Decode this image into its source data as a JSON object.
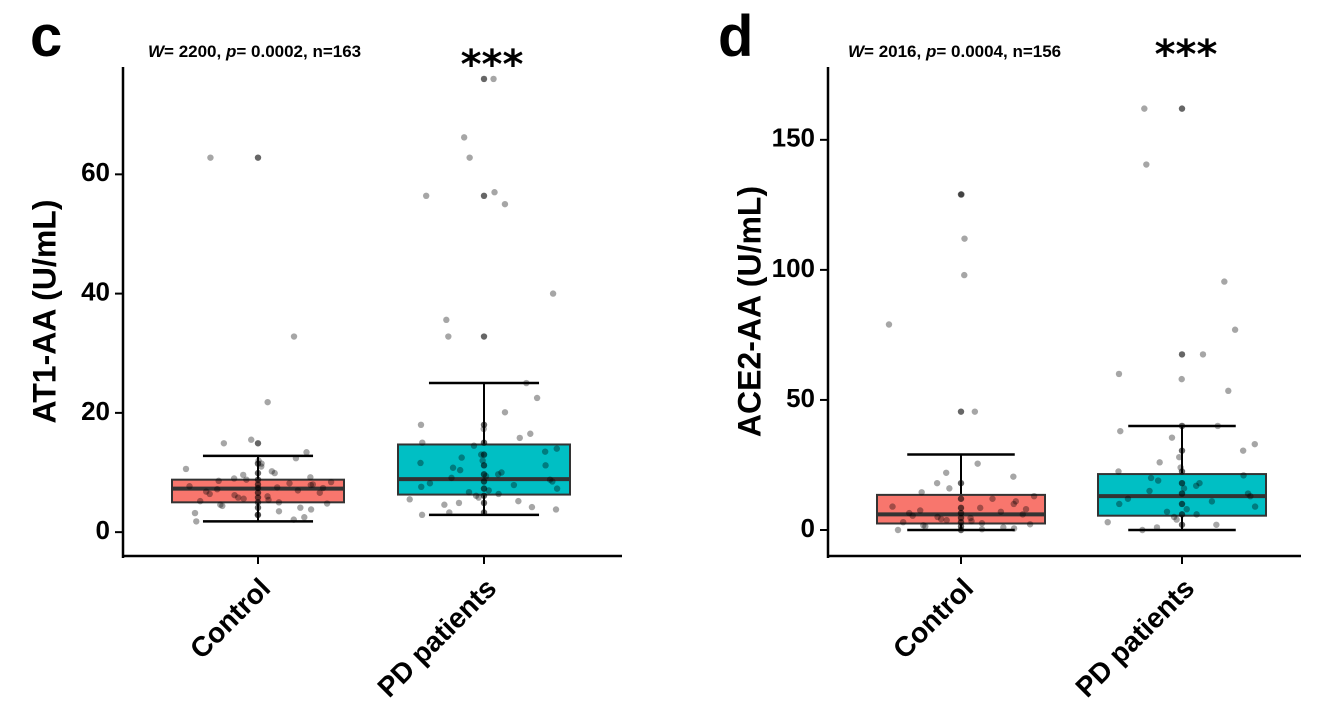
{
  "chart_data": [
    {
      "type": "box",
      "panel_label": "c",
      "stat_text": {
        "W_symbol": "W",
        "W_value": "= 2200, ",
        "p_symbol": "p",
        "p_value": "= 0.0002, n=163"
      },
      "significance": "***",
      "ylabel": "AT1-AA (U/mL)",
      "ylim": [
        -4,
        78
      ],
      "yticks": [
        0,
        20,
        40,
        60
      ],
      "categories": [
        "Control",
        "PD patients"
      ],
      "colors": {
        "Control": "#F8766D",
        "PD patients": "#00BFC4"
      },
      "boxes": [
        {
          "category": "Control",
          "whisker_low": 1.8,
          "q1": 5.0,
          "median": 7.3,
          "q3": 8.8,
          "whisker_high": 12.8
        },
        {
          "category": "PD patients",
          "whisker_low": 2.9,
          "q1": 6.3,
          "median": 8.9,
          "q3": 14.7,
          "whisker_high": 25.0
        }
      ],
      "points": [
        {
          "category": "Control",
          "values": [
            62.8,
            32.8,
            21.8,
            15.5,
            14.9,
            13.4,
            12.4,
            12.0,
            11.5,
            11.0,
            10.6,
            10.2,
            9.9,
            9.6,
            9.2,
            9.0,
            8.8,
            8.6,
            8.4,
            8.2,
            8.0,
            7.9,
            7.7,
            7.5,
            7.4,
            7.2,
            7.0,
            6.8,
            6.6,
            6.4,
            6.2,
            6.0,
            5.8,
            5.6,
            5.4,
            5.2,
            5.0,
            4.8,
            4.6,
            4.4,
            4.1,
            3.8,
            3.5,
            3.2,
            2.9,
            2.5,
            2.1,
            1.8
          ]
        },
        {
          "category": "PD patients",
          "values": [
            76.0,
            66.2,
            62.8,
            57.0,
            56.4,
            55.0,
            40.0,
            35.6,
            32.8,
            25.0,
            22.5,
            20.1,
            18.0,
            17.3,
            16.5,
            15.8,
            15.0,
            14.5,
            14.0,
            13.5,
            13.0,
            12.5,
            12.0,
            11.6,
            11.2,
            10.8,
            10.4,
            10.0,
            9.7,
            9.4,
            9.1,
            8.8,
            8.5,
            8.2,
            7.9,
            7.6,
            7.3,
            7.0,
            6.7,
            6.4,
            6.1,
            5.8,
            5.5,
            5.2,
            4.9,
            4.6,
            4.2,
            3.8,
            3.3,
            2.9
          ]
        }
      ]
    },
    {
      "type": "box",
      "panel_label": "d",
      "stat_text": {
        "W_symbol": "W",
        "W_value": "= 2016, ",
        "p_symbol": "p",
        "p_value": "= 0.0004, n=156"
      },
      "significance": "***",
      "ylabel": "ACE2-AA (U/mL)",
      "ylim": [
        -10,
        178
      ],
      "yticks": [
        0,
        50,
        100,
        150
      ],
      "categories": [
        "Control",
        "PD patients"
      ],
      "colors": {
        "Control": "#F8766D",
        "PD patients": "#00BFC4"
      },
      "boxes": [
        {
          "category": "Control",
          "whisker_low": 0.0,
          "q1": 2.5,
          "median": 6.0,
          "q3": 13.5,
          "whisker_high": 29.0
        },
        {
          "category": "PD patients",
          "whisker_low": 0.0,
          "q1": 5.5,
          "median": 13.0,
          "q3": 21.5,
          "whisker_high": 40.0
        }
      ],
      "points": [
        {
          "category": "Control",
          "values": [
            129.0,
            112.0,
            98.0,
            79.0,
            45.5,
            25.5,
            22.0,
            20.5,
            18.0,
            16.0,
            14.5,
            13.0,
            12.0,
            11.0,
            10.0,
            9.0,
            8.5,
            8.0,
            7.5,
            7.0,
            6.5,
            6.0,
            5.5,
            5.0,
            4.6,
            4.2,
            3.8,
            3.4,
            3.0,
            2.6,
            2.2,
            1.8,
            1.4,
            1.0,
            0.6,
            0.3,
            0.0
          ]
        },
        {
          "category": "PD patients",
          "values": [
            162.0,
            140.5,
            95.5,
            77.0,
            67.5,
            60.0,
            58.0,
            53.5,
            40.0,
            38.0,
            35.5,
            33.0,
            30.5,
            28.0,
            26.0,
            24.0,
            22.5,
            21.0,
            20.0,
            19.0,
            18.0,
            17.0,
            16.0,
            15.0,
            14.0,
            13.0,
            12.0,
            11.0,
            10.0,
            9.0,
            8.0,
            7.0,
            6.0,
            5.0,
            4.0,
            3.0,
            2.0,
            1.0,
            0.0
          ]
        }
      ]
    }
  ]
}
